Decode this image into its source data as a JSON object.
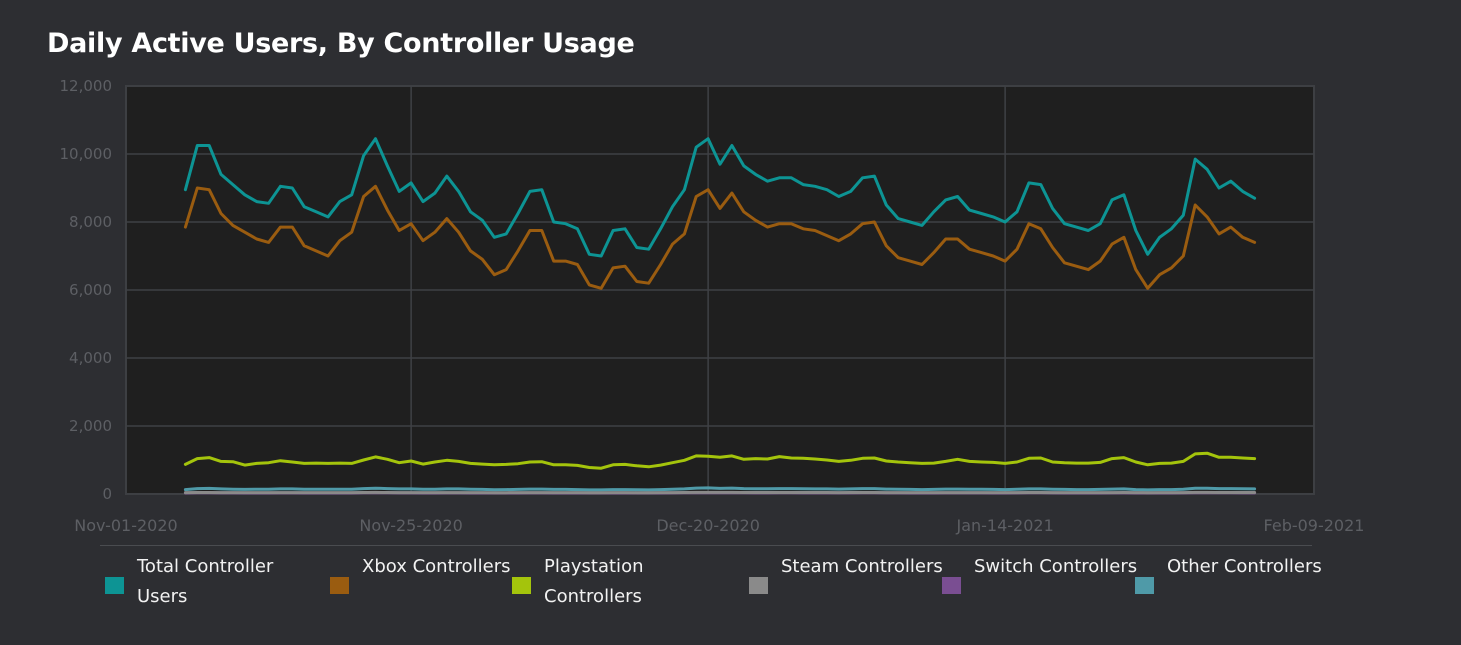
{
  "chart_data": {
    "type": "line",
    "title": "Daily Active Users, By Controller Usage",
    "xlabel": "",
    "ylabel": "",
    "ylim": [
      0,
      12000
    ],
    "xlim": [
      "2020-11-01",
      "2021-02-09"
    ],
    "yticks": [
      0,
      2000,
      4000,
      6000,
      8000,
      10000,
      12000
    ],
    "ytick_labels": [
      "0",
      "2,000",
      "4,000",
      "6,000",
      "8,000",
      "10,000",
      "12,000"
    ],
    "xticks": [
      "2020-11-01",
      "2020-11-25",
      "2020-12-20",
      "2021-01-14",
      "2021-02-09"
    ],
    "xtick_labels": [
      "Nov-01-2020",
      "Nov-25-2020",
      "Dec-20-2020",
      "Jan-14-2021",
      "Feb-09-2021"
    ],
    "grid": true,
    "legend": "bottom",
    "x_start": "2020-11-06",
    "x_step_days": 1,
    "series": [
      {
        "name": "Total Controller Users",
        "color": "#0d9494",
        "values": [
          8950,
          10250,
          10250,
          9400,
          9100,
          8800,
          8600,
          8550,
          9050,
          9000,
          8450,
          8300,
          8150,
          8600,
          8800,
          9950,
          10450,
          9650,
          8900,
          9150,
          8600,
          8850,
          9350,
          8900,
          8300,
          8050,
          7550,
          7650,
          8250,
          8900,
          8950,
          8000,
          7950,
          7800,
          7050,
          7000,
          7750,
          7800,
          7250,
          7200,
          7800,
          8450,
          8950,
          10200,
          10450,
          9700,
          10250,
          9650,
          9400,
          9200,
          9300,
          9300,
          9100,
          9050,
          8950,
          8750,
          8900,
          9300,
          9350,
          8500,
          8100,
          8000,
          7900,
          8300,
          8650,
          8750,
          8350,
          8250,
          8150,
          8000,
          8300,
          9150,
          9100,
          8400,
          7950,
          7850,
          7750,
          7950,
          8650,
          8800,
          7750,
          7050,
          7550,
          7800,
          8200,
          9850,
          9550,
          9000,
          9200,
          8900,
          8700
        ]
      },
      {
        "name": "Xbox Controllers",
        "color": "#9a5c10",
        "values": [
          7850,
          9000,
          8950,
          8250,
          7900,
          7700,
          7500,
          7400,
          7850,
          7850,
          7300,
          7150,
          7000,
          7450,
          7700,
          8750,
          9050,
          8350,
          7750,
          7950,
          7450,
          7700,
          8100,
          7700,
          7150,
          6900,
          6450,
          6600,
          7150,
          7750,
          7750,
          6850,
          6850,
          6750,
          6150,
          6050,
          6650,
          6700,
          6250,
          6200,
          6750,
          7350,
          7650,
          8750,
          8950,
          8400,
          8850,
          8300,
          8050,
          7850,
          7950,
          7950,
          7800,
          7750,
          7600,
          7450,
          7650,
          7950,
          8000,
          7300,
          6950,
          6850,
          6750,
          7100,
          7500,
          7500,
          7200,
          7100,
          7000,
          6850,
          7200,
          7950,
          7800,
          7250,
          6800,
          6700,
          6600,
          6850,
          7350,
          7550,
          6600,
          6050,
          6450,
          6650,
          7000,
          8500,
          8150,
          7650,
          7850,
          7550,
          7400
        ]
      },
      {
        "name": "Playstation Controllers",
        "color": "#a4c40c",
        "values": [
          870,
          1040,
          1070,
          960,
          950,
          850,
          900,
          920,
          980,
          940,
          900,
          910,
          900,
          910,
          900,
          1000,
          1090,
          1020,
          920,
          970,
          880,
          940,
          990,
          960,
          900,
          880,
          860,
          870,
          890,
          940,
          950,
          860,
          860,
          840,
          780,
          760,
          860,
          870,
          830,
          800,
          850,
          920,
          990,
          1120,
          1110,
          1080,
          1120,
          1020,
          1040,
          1030,
          1100,
          1060,
          1050,
          1030,
          1000,
          960,
          990,
          1050,
          1060,
          970,
          940,
          920,
          900,
          910,
          960,
          1020,
          960,
          940,
          930,
          900,
          940,
          1050,
          1060,
          940,
          920,
          910,
          910,
          930,
          1040,
          1070,
          940,
          860,
          900,
          910,
          960,
          1180,
          1200,
          1080,
          1080,
          1060,
          1040
        ]
      },
      {
        "name": "Steam Controllers",
        "color": "#8a8a8a",
        "values": [
          40,
          45,
          45,
          42,
          42,
          40,
          40,
          40,
          42,
          42,
          40,
          40,
          40,
          40,
          40,
          45,
          48,
          45,
          42,
          42,
          40,
          40,
          42,
          42,
          40,
          40,
          38,
          38,
          40,
          42,
          42,
          40,
          40,
          40,
          38,
          38,
          40,
          40,
          38,
          38,
          40,
          42,
          45,
          48,
          48,
          46,
          48,
          45,
          44,
          44,
          45,
          45,
          44,
          44,
          43,
          42,
          43,
          45,
          45,
          42,
          41,
          40,
          40,
          40,
          42,
          42,
          41,
          41,
          40,
          40,
          41,
          45,
          45,
          42,
          40,
          40,
          40,
          40,
          42,
          43,
          40,
          38,
          40,
          40,
          42,
          48,
          48,
          45,
          45,
          44,
          44
        ]
      },
      {
        "name": "Switch Controllers",
        "color": "#7a4e92",
        "values": [
          30,
          35,
          35,
          32,
          32,
          30,
          30,
          30,
          32,
          32,
          30,
          30,
          30,
          30,
          30,
          35,
          36,
          34,
          32,
          32,
          30,
          30,
          32,
          32,
          30,
          30,
          28,
          28,
          30,
          32,
          32,
          30,
          30,
          30,
          28,
          28,
          30,
          30,
          28,
          28,
          30,
          32,
          34,
          36,
          36,
          35,
          36,
          34,
          33,
          33,
          34,
          34,
          33,
          33,
          32,
          32,
          32,
          34,
          34,
          32,
          31,
          30,
          30,
          30,
          32,
          32,
          31,
          31,
          30,
          30,
          31,
          34,
          34,
          32,
          30,
          30,
          30,
          30,
          32,
          32,
          30,
          28,
          30,
          30,
          32,
          36,
          36,
          34,
          34,
          33,
          33
        ]
      },
      {
        "name": "Other Controllers",
        "color": "#4f9aa8",
        "values": [
          130,
          160,
          165,
          150,
          140,
          135,
          140,
          140,
          150,
          150,
          140,
          140,
          140,
          140,
          140,
          160,
          170,
          160,
          150,
          150,
          140,
          140,
          150,
          150,
          140,
          135,
          125,
          130,
          135,
          145,
          145,
          135,
          135,
          130,
          120,
          120,
          130,
          130,
          125,
          120,
          130,
          140,
          150,
          175,
          180,
          165,
          175,
          160,
          155,
          155,
          160,
          160,
          155,
          150,
          150,
          145,
          150,
          160,
          160,
          145,
          140,
          135,
          130,
          135,
          145,
          145,
          140,
          140,
          135,
          130,
          140,
          150,
          150,
          140,
          135,
          130,
          130,
          135,
          145,
          150,
          130,
          120,
          130,
          130,
          140,
          170,
          170,
          160,
          160,
          155,
          150
        ]
      }
    ]
  }
}
